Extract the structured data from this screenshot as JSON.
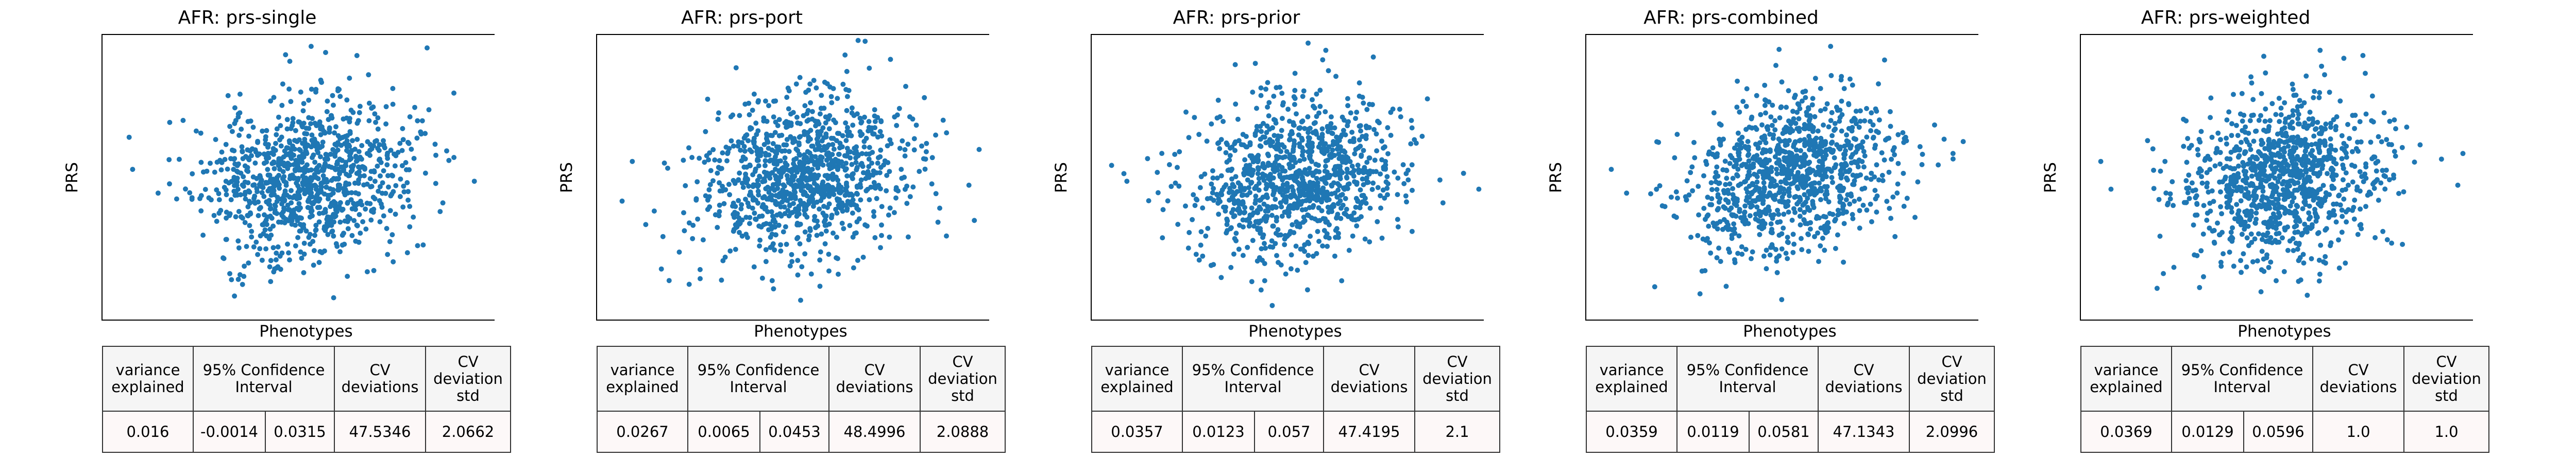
{
  "figure": {
    "xlabel": "Phenotypes",
    "ylabel": "PRS",
    "marker_color": "#1f77b4",
    "table_header_bg": "#f5f5f5",
    "table_value_bg": "#fdf8f8"
  },
  "table_headers": {
    "variance_explained": "variance explained",
    "confidence_interval": "95% Confidence Interval",
    "cv_deviations": "CV deviations",
    "cv_deviation_std": "CV deviation std"
  },
  "chart_data": [
    {
      "type": "scatter",
      "title": "AFR: prs-single",
      "xlabel": "Phenotypes",
      "ylabel": "PRS",
      "n_points": 1000,
      "seed": 11,
      "correlation": 0.12,
      "x": [
        -3.4,
        -2.9,
        2.9,
        3.3,
        0.1
      ],
      "y": [
        0.2,
        -0.4,
        0.5,
        -0.1,
        3.3
      ],
      "table": {
        "variance_explained": "0.016",
        "ci_low": "-0.0014",
        "ci_high": "0.0315",
        "cv_deviations": "47.5346",
        "cv_deviation_std": "2.0662"
      }
    },
    {
      "type": "scatter",
      "title": "AFR: prs-port",
      "xlabel": "Phenotypes",
      "ylabel": "PRS",
      "n_points": 1000,
      "seed": 23,
      "correlation": 0.15,
      "x": [
        -3.5,
        -3.3,
        3.5,
        3.3,
        0.0
      ],
      "y": [
        -0.6,
        0.4,
        0.7,
        -0.2,
        -3.1
      ],
      "table": {
        "variance_explained": "0.0267",
        "ci_low": "0.0065",
        "ci_high": "0.0453",
        "cv_deviations": "48.4996",
        "cv_deviation_std": "2.0888"
      }
    },
    {
      "type": "scatter",
      "title": "AFR: prs-prior",
      "xlabel": "Phenotypes",
      "ylabel": "PRS",
      "n_points": 1000,
      "seed": 37,
      "correlation": 0.18,
      "x": [
        -3.6,
        -3.3,
        3.3,
        3.6,
        0.6
      ],
      "y": [
        0.3,
        -0.1,
        0.1,
        -0.3,
        3.2
      ],
      "table": {
        "variance_explained": "0.0357",
        "ci_low": "0.0123",
        "ci_high": "0.057",
        "cv_deviations": "47.4195",
        "cv_deviation_std": "2.1"
      }
    },
    {
      "type": "scatter",
      "title": "AFR: prs-combined",
      "xlabel": "Phenotypes",
      "ylabel": "PRS",
      "n_points": 1000,
      "seed": 51,
      "correlation": 0.19,
      "x": [
        -3.5,
        -3.2,
        3.4,
        3.2,
        0.8
      ],
      "y": [
        0.2,
        -0.4,
        0.9,
        0.6,
        3.3
      ],
      "table": {
        "variance_explained": "0.0359",
        "ci_low": "0.0119",
        "ci_high": "0.0581",
        "cv_deviations": "47.1343",
        "cv_deviation_std": "2.0996"
      }
    },
    {
      "type": "scatter",
      "title": "AFR: prs-weighted",
      "xlabel": "Phenotypes",
      "ylabel": "PRS",
      "n_points": 1000,
      "seed": 67,
      "correlation": 0.19,
      "x": [
        -3.6,
        -3.4,
        3.5,
        3.4,
        0.7
      ],
      "y": [
        0.4,
        -0.3,
        0.6,
        -0.2,
        3.2
      ],
      "table": {
        "variance_explained": "0.0369",
        "ci_low": "0.0129",
        "ci_high": "0.0596",
        "cv_deviations": "1.0",
        "cv_deviation_std": "1.0"
      }
    }
  ]
}
